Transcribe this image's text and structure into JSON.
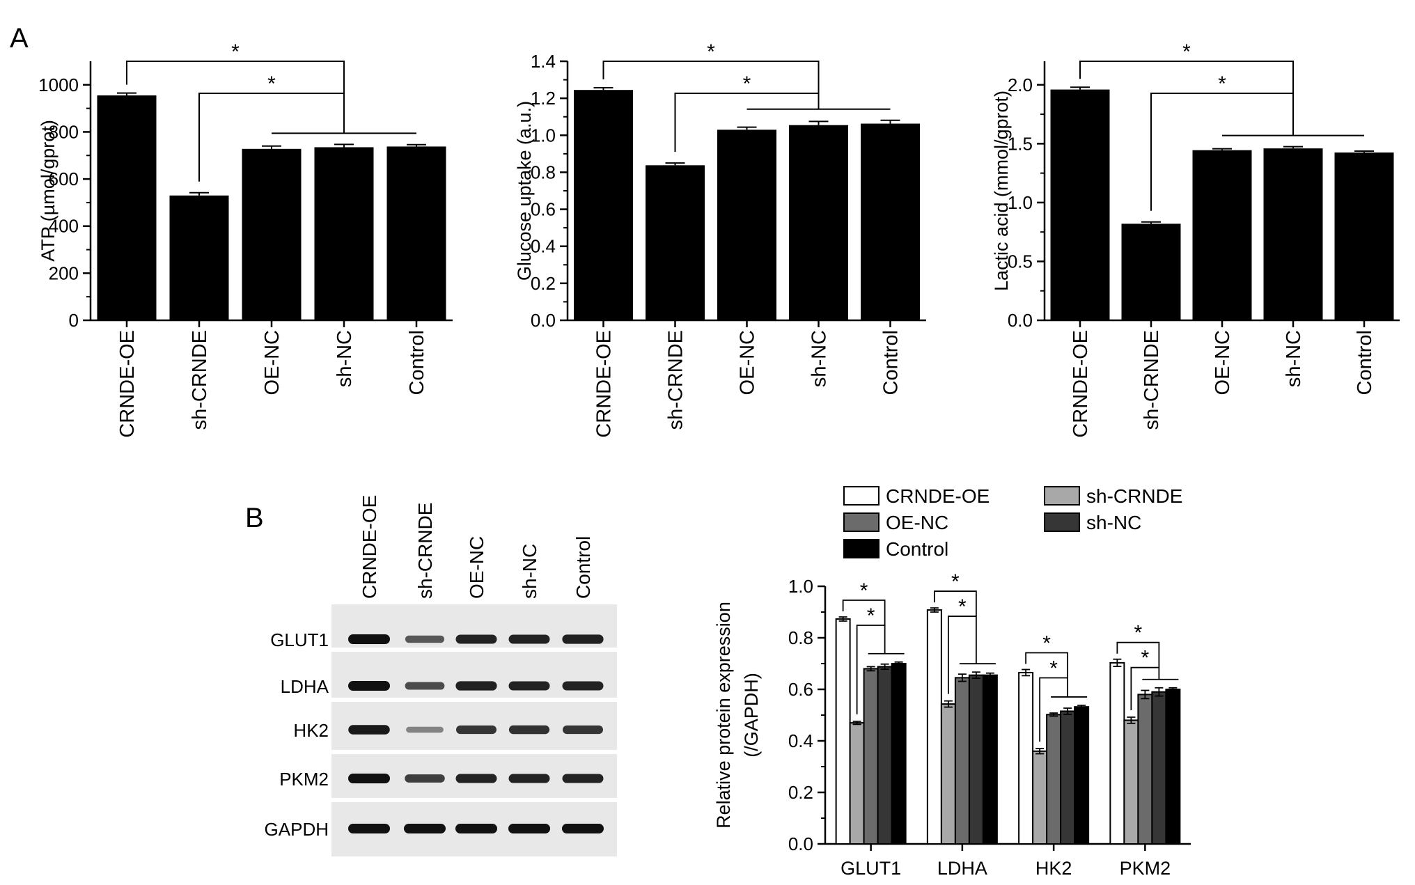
{
  "panel_letters": {
    "a": "A",
    "b": "B"
  },
  "significance_mark": "*",
  "chart_data": [
    {
      "type": "bar",
      "title": "",
      "ylabel": "ATP (µmol/gprot)",
      "categories": [
        "CRNDE-OE",
        "sh-CRNDE",
        "OE-NC",
        "sh-NC",
        "Control"
      ],
      "values": [
        955,
        530,
        728,
        735,
        738
      ],
      "errors": [
        10,
        12,
        12,
        12,
        8
      ],
      "ylim": [
        0,
        1100
      ],
      "yticks": [
        0,
        200,
        400,
        600,
        800,
        1000
      ],
      "ytick_labels": [
        "0",
        "200",
        "400",
        "600",
        "800",
        "1000"
      ]
    },
    {
      "type": "bar",
      "title": "",
      "ylabel": "Glucose uptake (a.u.)",
      "categories": [
        "CRNDE-OE",
        "sh-CRNDE",
        "OE-NC",
        "sh-NC",
        "Control"
      ],
      "values": [
        1.245,
        0.838,
        1.03,
        1.055,
        1.063
      ],
      "errors": [
        0.012,
        0.012,
        0.014,
        0.02,
        0.018
      ],
      "ylim": [
        0,
        1.4
      ],
      "yticks": [
        0,
        0.2,
        0.4,
        0.6,
        0.8,
        1.0,
        1.2,
        1.4
      ],
      "ytick_labels": [
        "0.0",
        "0.2",
        "0.4",
        "0.6",
        "0.8",
        "1.0",
        "1.2",
        "1.4"
      ]
    },
    {
      "type": "bar",
      "title": "",
      "ylabel": "Lactic acid (mmol/gprot)",
      "categories": [
        "CRNDE-OE",
        "sh-CRNDE",
        "OE-NC",
        "sh-NC",
        "Control"
      ],
      "values": [
        1.96,
        0.82,
        1.445,
        1.46,
        1.425
      ],
      "errors": [
        0.02,
        0.015,
        0.012,
        0.015,
        0.012
      ],
      "ylim": [
        0,
        2.2
      ],
      "yticks": [
        0,
        0.5,
        1.0,
        1.5,
        2.0
      ],
      "ytick_labels": [
        "0.0",
        "0.5",
        "1.0",
        "1.5",
        "2.0"
      ]
    },
    {
      "type": "bar",
      "title": "",
      "ylabel_lines": [
        "Relative protein expression",
        "(/GAPDH)"
      ],
      "categories": [
        "GLUT1",
        "LDHA",
        "HK2",
        "PKM2"
      ],
      "series": [
        {
          "name": "CRNDE-OE",
          "color": "#ffffff",
          "values": [
            0.873,
            0.908,
            0.665,
            0.703
          ],
          "errors": [
            0.008,
            0.008,
            0.012,
            0.014
          ]
        },
        {
          "name": "sh-CRNDE",
          "color": "#a8a8a8",
          "values": [
            0.47,
            0.543,
            0.36,
            0.48
          ],
          "errors": [
            0.006,
            0.012,
            0.01,
            0.012
          ]
        },
        {
          "name": "OE-NC",
          "color": "#6b6b6b",
          "values": [
            0.68,
            0.645,
            0.502,
            0.58
          ],
          "errors": [
            0.008,
            0.014,
            0.006,
            0.016
          ]
        },
        {
          "name": "sh-NC",
          "color": "#363636",
          "values": [
            0.688,
            0.655,
            0.515,
            0.59
          ],
          "errors": [
            0.01,
            0.012,
            0.012,
            0.016
          ]
        },
        {
          "name": "Control",
          "color": "#000000",
          "values": [
            0.7,
            0.655,
            0.532,
            0.6
          ],
          "errors": [
            0.006,
            0.008,
            0.006,
            0.006
          ]
        }
      ],
      "ylim": [
        0,
        1.0
      ],
      "yticks": [
        0,
        0.2,
        0.4,
        0.6,
        0.8,
        1.0
      ],
      "ytick_labels": [
        "0.0",
        "0.2",
        "0.4",
        "0.6",
        "0.8",
        "1.0"
      ],
      "legend": "top"
    }
  ],
  "western_blot": {
    "lanes": [
      "CRNDE-OE",
      "sh-CRNDE",
      "OE-NC",
      "sh-NC",
      "Control"
    ],
    "rows": [
      {
        "protein": "GLUT1",
        "intensity": [
          1.0,
          0.62,
          0.9,
          0.9,
          0.92
        ]
      },
      {
        "protein": "LDHA",
        "intensity": [
          1.0,
          0.68,
          0.92,
          0.9,
          0.9
        ]
      },
      {
        "protein": "HK2",
        "intensity": [
          0.95,
          0.38,
          0.8,
          0.82,
          0.8
        ]
      },
      {
        "protein": "PKM2",
        "intensity": [
          1.0,
          0.75,
          0.9,
          0.9,
          0.9
        ]
      },
      {
        "protein": "GAPDH",
        "intensity": [
          1.0,
          1.0,
          1.0,
          1.0,
          1.0
        ]
      }
    ]
  }
}
